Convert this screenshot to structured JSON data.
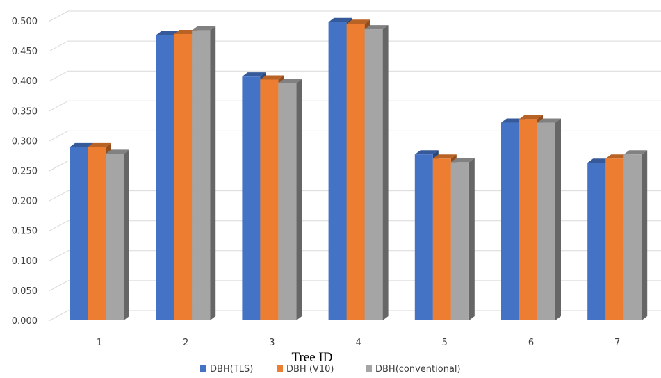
{
  "chart_data": {
    "type": "bar",
    "categories": [
      "1",
      "2",
      "3",
      "4",
      "5",
      "6",
      "7"
    ],
    "series": [
      {
        "name": "DBH(TLS)",
        "values": [
          0.289,
          0.476,
          0.407,
          0.498,
          0.277,
          0.33,
          0.263
        ],
        "color": "#4472C4"
      },
      {
        "name": "DBH (V10)",
        "values": [
          0.289,
          0.478,
          0.402,
          0.495,
          0.27,
          0.336,
          0.27
        ],
        "color": "#ED7D31"
      },
      {
        "name": "DBH(conventional)",
        "values": [
          0.278,
          0.484,
          0.396,
          0.486,
          0.264,
          0.33,
          0.277
        ],
        "color": "#A5A5A5"
      }
    ],
    "title": "",
    "xlabel": "Tree ID",
    "ylabel": "",
    "ylim": [
      0,
      0.5
    ],
    "yticks": [
      "0.000",
      "0.050",
      "0.100",
      "0.150",
      "0.200",
      "0.250",
      "0.300",
      "0.350",
      "0.400",
      "0.450",
      "0.500"
    ],
    "grid": true,
    "legend_position": "bottom"
  }
}
